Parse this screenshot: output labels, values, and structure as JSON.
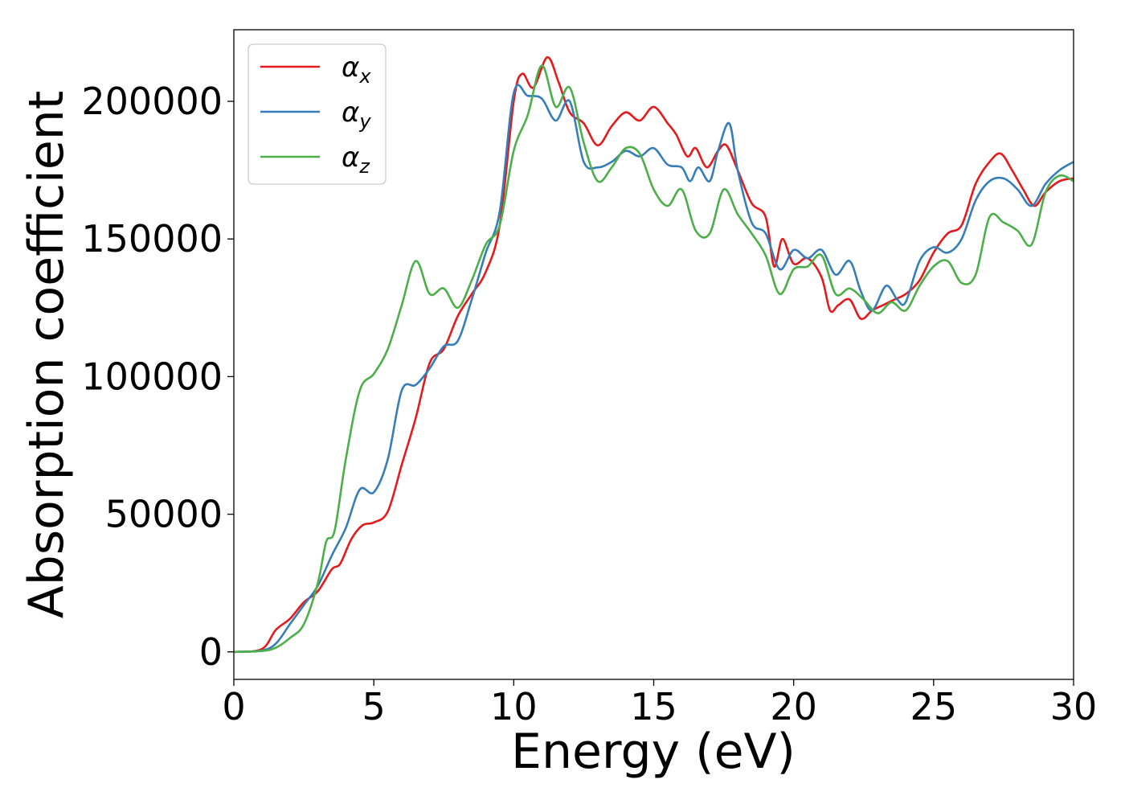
{
  "chart_data": {
    "type": "line",
    "title": "",
    "xlabel": "Energy (eV)",
    "ylabel": "Absorption coefficient",
    "xlim": [
      0,
      30
    ],
    "ylim": [
      -10000,
      226000
    ],
    "xticks": [
      0,
      5,
      10,
      15,
      20,
      25,
      30
    ],
    "xtick_labels": [
      "0",
      "5",
      "10",
      "15",
      "20",
      "25",
      "30"
    ],
    "yticks": [
      0,
      50000,
      100000,
      150000,
      200000
    ],
    "ytick_labels": [
      "0",
      "50000",
      "100000",
      "150000",
      "200000"
    ],
    "grid": false,
    "legend_position": "top-left",
    "series": [
      {
        "name": "α",
        "subscript": "x",
        "color": "#e41a1c",
        "x": [
          0,
          1.0,
          1.5,
          2.0,
          2.5,
          3.0,
          3.5,
          3.8,
          4.2,
          4.6,
          5.0,
          5.5,
          6.0,
          6.5,
          7.0,
          7.5,
          8.0,
          8.5,
          9.0,
          9.5,
          10.0,
          10.3,
          10.7,
          11.2,
          11.6,
          12.0,
          12.5,
          13.0,
          13.5,
          14.0,
          14.5,
          15.0,
          15.5,
          15.8,
          16.2,
          16.5,
          16.9,
          17.3,
          17.6,
          18.0,
          18.5,
          19.0,
          19.3,
          19.6,
          20.0,
          20.5,
          21.0,
          21.3,
          21.6,
          22.0,
          22.4,
          22.8,
          23.2,
          23.6,
          24.0,
          24.5,
          25.0,
          25.5,
          26.0,
          26.5,
          27.0,
          27.4,
          27.8,
          28.2,
          28.6,
          29.0,
          29.5,
          30.0
        ],
        "values": [
          0,
          1000,
          8000,
          12000,
          18000,
          22000,
          30000,
          32000,
          41000,
          46000,
          47000,
          51000,
          68000,
          85000,
          105000,
          110000,
          122000,
          130000,
          138000,
          155000,
          200000,
          210000,
          205000,
          216000,
          207000,
          196000,
          192000,
          184000,
          191000,
          196000,
          193000,
          198000,
          192000,
          188000,
          180000,
          183000,
          176000,
          182000,
          184000,
          175000,
          163000,
          158000,
          140000,
          150000,
          141000,
          143000,
          136000,
          124000,
          126000,
          128000,
          121000,
          124000,
          126000,
          128000,
          130000,
          135000,
          145000,
          152000,
          155000,
          170000,
          178000,
          181000,
          175000,
          168000,
          162000,
          167000,
          171000,
          172000
        ]
      },
      {
        "name": "α",
        "subscript": "y",
        "color": "#377eb8",
        "x": [
          0,
          1.0,
          1.5,
          2.0,
          2.5,
          3.0,
          3.5,
          4.0,
          4.5,
          5.0,
          5.5,
          6.0,
          6.5,
          7.0,
          7.5,
          8.0,
          8.5,
          9.0,
          9.5,
          10.0,
          10.5,
          11.0,
          11.5,
          12.0,
          12.5,
          13.0,
          13.5,
          14.0,
          14.5,
          15.0,
          15.5,
          16.0,
          16.3,
          16.6,
          17.0,
          17.3,
          17.7,
          18.0,
          18.5,
          19.0,
          19.5,
          20.0,
          20.5,
          21.0,
          21.5,
          22.0,
          22.4,
          22.8,
          23.3,
          23.7,
          24.0,
          24.5,
          25.0,
          25.5,
          26.0,
          26.5,
          27.0,
          27.5,
          28.0,
          28.5,
          29.0,
          29.5,
          30.0
        ],
        "values": [
          0,
          500,
          3000,
          10000,
          17000,
          24000,
          35000,
          45000,
          59000,
          58000,
          70000,
          95000,
          97000,
          103000,
          111000,
          113000,
          128000,
          145000,
          160000,
          203000,
          202000,
          201000,
          193000,
          200000,
          178000,
          176000,
          178000,
          182000,
          180000,
          183000,
          177000,
          176000,
          171000,
          176000,
          171000,
          182000,
          192000,
          175000,
          156000,
          152000,
          139000,
          146000,
          143000,
          146000,
          137000,
          142000,
          131000,
          124000,
          133000,
          128000,
          127000,
          142000,
          147000,
          145000,
          150000,
          164000,
          171000,
          172000,
          168000,
          162000,
          170000,
          175000,
          178000
        ]
      },
      {
        "name": "α",
        "subscript": "z",
        "color": "#4daf4a",
        "x": [
          0,
          1.0,
          1.5,
          2.0,
          2.5,
          3.0,
          3.3,
          3.6,
          4.0,
          4.5,
          5.0,
          5.5,
          6.0,
          6.5,
          7.0,
          7.5,
          8.0,
          8.5,
          9.0,
          9.5,
          10.0,
          10.5,
          11.0,
          11.5,
          12.0,
          12.5,
          13.0,
          13.5,
          14.0,
          14.5,
          15.0,
          15.5,
          16.0,
          16.5,
          17.0,
          17.5,
          18.0,
          18.5,
          19.0,
          19.5,
          20.0,
          20.5,
          21.0,
          21.5,
          22.0,
          22.5,
          23.0,
          23.5,
          24.0,
          24.5,
          25.0,
          25.5,
          26.0,
          26.5,
          27.0,
          27.5,
          28.0,
          28.5,
          29.0,
          29.5,
          30.0
        ],
        "values": [
          0,
          300,
          1500,
          5000,
          10000,
          25000,
          40000,
          44000,
          70000,
          95000,
          101000,
          110000,
          126000,
          142000,
          130000,
          132000,
          125000,
          135000,
          148000,
          155000,
          182000,
          195000,
          213000,
          198000,
          205000,
          185000,
          171000,
          176000,
          183000,
          181000,
          168000,
          162000,
          168000,
          153000,
          152000,
          168000,
          159000,
          152000,
          144000,
          130000,
          139000,
          140000,
          144000,
          130000,
          132000,
          128000,
          123000,
          127000,
          124000,
          133000,
          140000,
          142000,
          134000,
          137000,
          158000,
          156000,
          153000,
          148000,
          167000,
          173000,
          171000
        ]
      }
    ]
  }
}
